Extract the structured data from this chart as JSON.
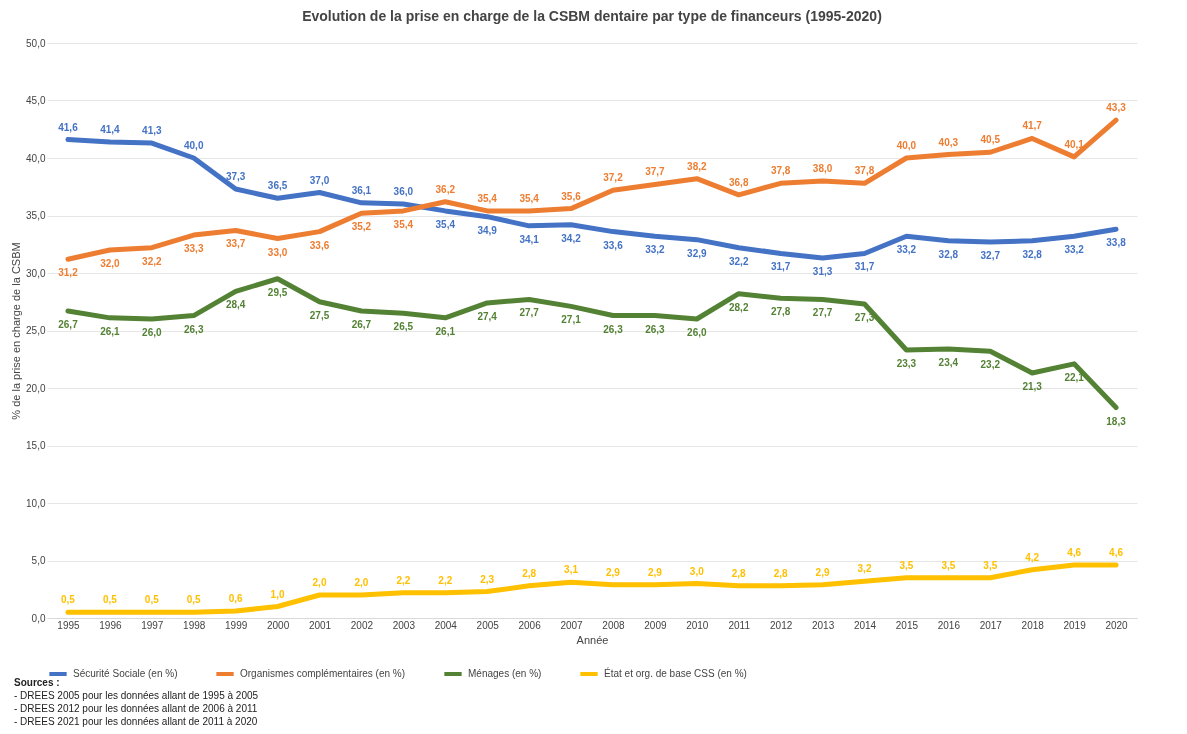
{
  "chart_data": {
    "type": "line",
    "title": "Evolution de la prise en charge de la CSBM dentaire par type de financeurs (1995-2020)",
    "xlabel": "Année",
    "ylabel": "% de la prise en charge de la CSBM",
    "categories": [
      "1995",
      "1996",
      "1997",
      "1998",
      "1999",
      "2000",
      "2001",
      "2002",
      "2003",
      "2004",
      "2005",
      "2006",
      "2007",
      "2008",
      "2009",
      "2010",
      "2011",
      "2012",
      "2013",
      "2014",
      "2015",
      "2016",
      "2017",
      "2018",
      "2019",
      "2020"
    ],
    "series": [
      {
        "name": "Sécurité Sociale (en %)",
        "color": "#4472c4",
        "values": [
          41.6,
          41.4,
          41.3,
          40.0,
          37.3,
          36.5,
          37.0,
          36.1,
          36.0,
          35.4,
          34.9,
          34.1,
          34.2,
          33.6,
          33.2,
          32.9,
          32.2,
          31.7,
          31.3,
          31.7,
          33.2,
          32.8,
          32.7,
          32.8,
          33.2,
          33.8
        ],
        "value_labels": [
          "41,6",
          "41,4",
          "41,3",
          "40,0",
          "37,3",
          "36,5",
          "37,0",
          "36,1",
          "36,0",
          "35,4",
          "34,9",
          "34,1",
          "34,2",
          "33,6",
          "33,2",
          "32,9",
          "32,2",
          "31,7",
          "31,3",
          "31,7",
          "33,2",
          "32,8",
          "32,7",
          "32,8",
          "33,2",
          "33,8"
        ]
      },
      {
        "name": "Organismes complémentaires (en %)",
        "color": "#ed7d31",
        "values": [
          31.2,
          32.0,
          32.2,
          33.3,
          33.7,
          33.0,
          33.6,
          35.2,
          35.4,
          36.2,
          35.4,
          35.4,
          35.6,
          37.2,
          37.7,
          38.2,
          36.8,
          37.8,
          38.0,
          37.8,
          40.0,
          40.3,
          40.5,
          41.7,
          40.1,
          43.3
        ],
        "value_labels": [
          "31,2",
          "32,0",
          "32,2",
          "33,3",
          "33,7",
          "33,0",
          "33,6",
          "35,2",
          "35,4",
          "36,2",
          "35,4",
          "35,4",
          "35,6",
          "37,2",
          "37,7",
          "38,2",
          "36,8",
          "37,8",
          "38,0",
          "37,8",
          "40,0",
          "40,3",
          "40,5",
          "41,7",
          "40,1",
          "43,3"
        ]
      },
      {
        "name": "Ménages (en %)",
        "color": "#548235",
        "values": [
          26.7,
          26.1,
          26.0,
          26.3,
          28.4,
          29.5,
          27.5,
          26.7,
          26.5,
          26.1,
          27.4,
          27.7,
          27.1,
          26.3,
          26.3,
          26.0,
          28.2,
          27.8,
          27.7,
          27.3,
          23.3,
          23.4,
          23.2,
          21.3,
          22.1,
          18.3
        ],
        "value_labels": [
          "26,7",
          "26,1",
          "26,0",
          "26,3",
          "28,4",
          "29,5",
          "27,5",
          "26,7",
          "26,5",
          "26,1",
          "27,4",
          "27,7",
          "27,1",
          "26,3",
          "26,3",
          "26,0",
          "28,2",
          "27,8",
          "27,7",
          "27,3",
          "23,3",
          "23,4",
          "23,2",
          "21,3",
          "22,1",
          "18,3"
        ]
      },
      {
        "name": "État et org. de base CSS (en %)",
        "color": "#ffc000",
        "values": [
          0.5,
          0.5,
          0.5,
          0.5,
          0.6,
          1.0,
          2.0,
          2.0,
          2.2,
          2.2,
          2.3,
          2.8,
          3.1,
          2.9,
          2.9,
          3.0,
          2.8,
          2.8,
          2.9,
          3.2,
          3.5,
          3.5,
          3.5,
          4.2,
          4.6,
          4.6
        ],
        "value_labels": [
          "0,5",
          "0,5",
          "0,5",
          "0,5",
          "0,6",
          "1,0",
          "2,0",
          "2,0",
          "2,2",
          "2,2",
          "2,3",
          "2,8",
          "3,1",
          "2,9",
          "2,9",
          "3,0",
          "2,8",
          "2,8",
          "2,9",
          "3,2",
          "3,5",
          "3,5",
          "3,5",
          "4,2",
          "4,6",
          "4,6"
        ]
      }
    ],
    "ylim": [
      0,
      50
    ],
    "yticks": [
      {
        "value": 0,
        "label": "0,0"
      },
      {
        "value": 5,
        "label": "5,0"
      },
      {
        "value": 10,
        "label": "10,0"
      },
      {
        "value": 15,
        "label": "15,0"
      },
      {
        "value": 20,
        "label": "20,0"
      },
      {
        "value": 25,
        "label": "25,0"
      },
      {
        "value": 30,
        "label": "30,0"
      },
      {
        "value": 35,
        "label": "35,0"
      },
      {
        "value": 40,
        "label": "40,0"
      },
      {
        "value": 45,
        "label": "45,0"
      },
      {
        "value": 50,
        "label": "50,0"
      }
    ],
    "grid": "y",
    "legend": "bottom",
    "marker": "none",
    "line_style": "solid",
    "annotations": [
      "Sources :",
      "- DREES 2005 pour les données allant de 1995 à 2005",
      "- DREES 2012 pour les données allant de 2006 à 2011",
      "- DREES 2021 pour les données allant de 2011 à 2020"
    ]
  }
}
